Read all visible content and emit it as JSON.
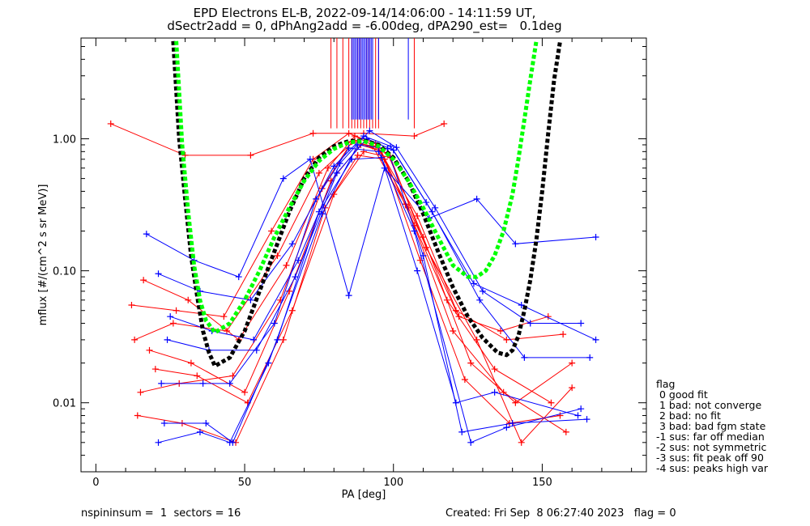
{
  "title_line1": "EPD Electrons EL-B, 2022-09-14/14:06:00 - 14:11:59 UT,",
  "title_line2": "dSectr2add = 0, dPhAng2add = -6.00deg, dPA290_est=   0.1deg",
  "footer_left": "nspininsum =  1  sectors = 16",
  "footer_right": "Created: Fri Sep  8 06:27:40 2023   flag = 0",
  "legend": {
    "title": "flag",
    "rows": [
      " 0 good fit",
      " 1 bad: not converge",
      " 2 bad: no fit",
      " 3 bad: bad fgm state",
      "-1 sus: far off median",
      "-2 sus: not symmetric",
      "-3 sus: fit peak off 90",
      "-4 sus: peaks high var"
    ]
  },
  "colors": {
    "red": "#ff0000",
    "blue": "#0000ff",
    "fit_black": "#000000",
    "fit_green": "#00ff00"
  },
  "chart_data": {
    "type": "line",
    "xlabel": "PA [deg]",
    "ylabel": "mflux [#/(cm^2 s sr MeV)]",
    "x_ticks": [
      "0",
      "50",
      "100",
      "150"
    ],
    "y_ticks": [
      "0.01",
      "0.10",
      "1.00"
    ],
    "xlim": [
      -5,
      185
    ],
    "ylim": [
      0.003,
      5.8
    ],
    "y_scale": "log",
    "grid": false,
    "legend_position": "right",
    "series": [
      {
        "color": "red",
        "x": [
          5,
          30,
          52,
          73,
          90,
          107,
          117
        ],
        "y": [
          1.3,
          0.75,
          0.75,
          1.1,
          1.1,
          1.05,
          1.3
        ]
      },
      {
        "color": "red",
        "x": [
          15,
          28,
          46,
          62,
          76,
          86,
          93,
          104,
          118,
          134,
          153
        ],
        "y": [
          0.012,
          0.014,
          0.016,
          0.06,
          0.42,
          0.95,
          0.88,
          0.32,
          0.06,
          0.018,
          0.01
        ]
      },
      {
        "color": "red",
        "x": [
          13,
          26,
          44,
          61,
          75,
          87,
          96,
          107,
          120,
          137,
          158
        ],
        "y": [
          0.03,
          0.04,
          0.035,
          0.13,
          0.55,
          0.97,
          0.8,
          0.22,
          0.035,
          0.012,
          0.006
        ]
      },
      {
        "color": "red",
        "x": [
          12,
          27,
          43,
          59,
          73,
          85,
          94,
          105,
          121,
          138,
          157
        ],
        "y": [
          0.055,
          0.05,
          0.045,
          0.2,
          0.7,
          1.1,
          0.92,
          0.3,
          0.05,
          0.03,
          0.033
        ]
      },
      {
        "color": "red",
        "x": [
          14,
          29,
          47,
          63,
          77,
          88,
          97,
          109,
          124,
          139,
          156
        ],
        "y": [
          0.008,
          0.007,
          0.005,
          0.03,
          0.3,
          0.75,
          0.7,
          0.12,
          0.015,
          0.007,
          0.008
        ]
      },
      {
        "color": "red",
        "x": [
          18,
          32,
          50,
          65,
          79,
          89,
          98,
          110,
          126,
          141,
          160
        ],
        "y": [
          0.025,
          0.02,
          0.012,
          0.07,
          0.48,
          0.9,
          0.78,
          0.18,
          0.02,
          0.01,
          0.02
        ]
      },
      {
        "color": "red",
        "x": [
          16,
          31,
          48,
          64,
          78,
          87,
          95,
          108,
          122,
          136,
          152
        ],
        "y": [
          0.085,
          0.06,
          0.03,
          0.11,
          0.6,
          1.05,
          0.85,
          0.26,
          0.045,
          0.035,
          0.045
        ]
      },
      {
        "color": "red",
        "x": [
          20,
          34,
          51,
          66,
          80,
          90,
          99,
          111,
          128,
          143,
          160
        ],
        "y": [
          0.018,
          0.016,
          0.01,
          0.05,
          0.38,
          0.8,
          0.72,
          0.15,
          0.03,
          0.005,
          0.013
        ]
      },
      {
        "color": "blue",
        "x": [
          21,
          35,
          52,
          66,
          80,
          90,
          99,
          111,
          127,
          143,
          168
        ],
        "y": [
          0.095,
          0.07,
          0.06,
          0.16,
          0.62,
          1.05,
          0.88,
          0.33,
          0.08,
          0.055,
          0.03
        ]
      },
      {
        "color": "blue",
        "x": [
          22,
          36,
          45,
          60,
          74,
          85,
          95,
          107,
          126,
          138,
          163
        ],
        "y": [
          0.014,
          0.014,
          0.014,
          0.04,
          0.35,
          0.85,
          0.8,
          0.2,
          0.005,
          0.0065,
          0.009
        ]
      },
      {
        "color": "blue",
        "x": [
          23,
          37,
          46,
          61,
          75,
          86,
          96,
          108,
          121,
          134,
          162
        ],
        "y": [
          0.007,
          0.007,
          0.005,
          0.03,
          0.28,
          0.7,
          0.72,
          0.1,
          0.01,
          0.012,
          0.008
        ]
      },
      {
        "color": "blue",
        "x": [
          17,
          33,
          48,
          63,
          72,
          85,
          97,
          112,
          128,
          141,
          168
        ],
        "y": [
          0.19,
          0.12,
          0.09,
          0.5,
          0.7,
          0.065,
          0.6,
          0.25,
          0.35,
          0.16,
          0.18
        ]
      },
      {
        "color": "blue",
        "x": [
          24,
          38,
          54,
          67,
          81,
          91,
          100,
          113,
          129,
          144,
          166
        ],
        "y": [
          0.03,
          0.025,
          0.025,
          0.09,
          0.55,
          1.0,
          0.82,
          0.28,
          0.06,
          0.022,
          0.022
        ]
      },
      {
        "color": "blue",
        "x": [
          21,
          35,
          45,
          58,
          76,
          88,
          98,
          110,
          123,
          140,
          165
        ],
        "y": [
          0.005,
          0.006,
          0.005,
          0.02,
          0.27,
          0.9,
          0.84,
          0.13,
          0.006,
          0.007,
          0.0075
        ]
      },
      {
        "color": "blue",
        "x": [
          25,
          39,
          53,
          68,
          82,
          92,
          101,
          114,
          130,
          146,
          163
        ],
        "y": [
          0.045,
          0.035,
          0.03,
          0.12,
          0.65,
          1.15,
          0.86,
          0.3,
          0.07,
          0.04,
          0.04
        ]
      }
    ],
    "fits": [
      {
        "name": "",
        "color": "fit_black",
        "x": [
          26,
          28,
          30,
          32,
          34,
          36,
          38,
          40,
          45,
          50,
          55,
          60,
          65,
          70,
          75,
          80,
          85,
          90,
          95,
          100,
          105,
          110,
          115,
          120,
          125,
          130,
          135,
          138,
          140,
          142,
          144,
          146,
          148,
          150,
          152,
          154,
          156
        ],
        "y": [
          5.5,
          1.0,
          0.35,
          0.13,
          0.065,
          0.035,
          0.024,
          0.019,
          0.022,
          0.035,
          0.07,
          0.14,
          0.28,
          0.5,
          0.72,
          0.88,
          0.96,
          0.97,
          0.9,
          0.72,
          0.48,
          0.27,
          0.14,
          0.075,
          0.045,
          0.031,
          0.024,
          0.023,
          0.025,
          0.032,
          0.05,
          0.085,
          0.17,
          0.4,
          1.1,
          2.8,
          5.5
        ]
      },
      {
        "name": "",
        "color": "fit_green",
        "x": [
          27,
          29,
          31,
          33,
          35,
          37,
          40,
          45,
          50,
          55,
          60,
          65,
          70,
          75,
          80,
          85,
          90,
          95,
          100,
          105,
          110,
          115,
          120,
          125,
          128,
          131,
          134,
          137,
          140,
          142,
          144,
          146,
          148
        ],
        "y": [
          5.5,
          0.9,
          0.28,
          0.11,
          0.06,
          0.042,
          0.034,
          0.04,
          0.06,
          0.1,
          0.18,
          0.3,
          0.48,
          0.68,
          0.84,
          0.94,
          0.96,
          0.88,
          0.7,
          0.48,
          0.3,
          0.18,
          0.11,
          0.09,
          0.09,
          0.1,
          0.13,
          0.2,
          0.38,
          0.7,
          1.4,
          2.8,
          5.5
        ]
      }
    ],
    "spikes": [
      {
        "color": "red",
        "x": [
          79,
          81,
          83,
          85,
          86,
          87,
          88,
          89,
          90,
          91,
          92,
          93,
          94,
          95,
          107
        ],
        "ymin": 1.2
      },
      {
        "color": "blue",
        "x": [
          86,
          86.5,
          87,
          87.5,
          88,
          88.5,
          89,
          89.5,
          90,
          90.5,
          91,
          91.5,
          92,
          92.5,
          93,
          95,
          105
        ],
        "ymin": 1.4
      }
    ]
  }
}
